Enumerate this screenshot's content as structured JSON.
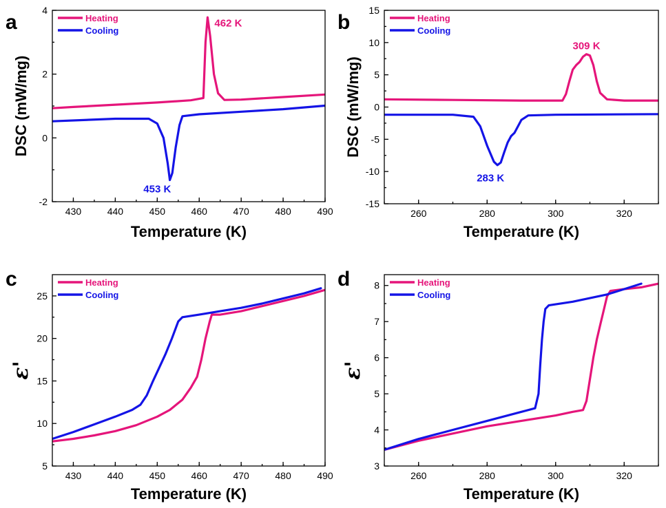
{
  "colors": {
    "heating": "#e5157a",
    "cooling": "#1414e6"
  },
  "chart_data": [
    {
      "panel": "a",
      "type": "line",
      "xlabel": "Temperature (K)",
      "ylabel": "DSC (mW/mg)",
      "xlim": [
        425,
        490
      ],
      "ylim": [
        -2,
        4
      ],
      "xticks": [
        430,
        440,
        450,
        460,
        470,
        480,
        490
      ],
      "yticks": [
        -2,
        0,
        2,
        4
      ],
      "legend_position": "top-left",
      "annotations": [
        {
          "text": "462 K",
          "x": 462,
          "y": 3.6,
          "series": "Heating"
        },
        {
          "text": "453 K",
          "x": 450,
          "y": -1.6,
          "series": "Cooling"
        }
      ],
      "series": [
        {
          "name": "Heating",
          "color_key": "heating",
          "x": [
            425,
            430,
            440,
            450,
            458,
            461,
            461.5,
            462,
            462.6,
            463.5,
            464.5,
            466,
            470,
            480,
            490
          ],
          "y": [
            0.93,
            0.97,
            1.04,
            1.11,
            1.18,
            1.25,
            3.0,
            3.78,
            3.2,
            2.0,
            1.4,
            1.19,
            1.2,
            1.28,
            1.36
          ]
        },
        {
          "name": "Cooling",
          "color_key": "cooling",
          "x": [
            425,
            440,
            448,
            450,
            451.5,
            452.5,
            453,
            453.6,
            454.4,
            455.3,
            456,
            460,
            470,
            480,
            490
          ],
          "y": [
            0.52,
            0.6,
            0.6,
            0.45,
            0.0,
            -0.8,
            -1.32,
            -1.1,
            -0.3,
            0.4,
            0.68,
            0.74,
            0.82,
            0.9,
            1.01
          ]
        }
      ]
    },
    {
      "panel": "b",
      "type": "line",
      "xlabel": "Temperature (K)",
      "ylabel": "DSC (mW/mg)",
      "xlim": [
        250,
        330
      ],
      "ylim": [
        -15,
        15
      ],
      "xticks": [
        260,
        280,
        300,
        320
      ],
      "yticks": [
        -15,
        -10,
        -5,
        0,
        5,
        10,
        15
      ],
      "legend_position": "top-left",
      "annotations": [
        {
          "text": "309 K",
          "x": 309,
          "y": 9.5,
          "series": "Heating"
        },
        {
          "text": "283 K",
          "x": 281,
          "y": -11,
          "series": "Cooling"
        }
      ],
      "series": [
        {
          "name": "Heating",
          "color_key": "heating",
          "x": [
            250,
            270,
            290,
            302,
            303,
            304,
            305,
            306,
            307,
            308,
            309,
            310,
            311,
            312,
            313,
            315,
            320,
            330
          ],
          "y": [
            1.2,
            1.1,
            1.0,
            1.0,
            2.0,
            4.0,
            5.8,
            6.5,
            7.0,
            7.8,
            8.2,
            8.0,
            6.5,
            4.0,
            2.2,
            1.2,
            1.0,
            1.0
          ]
        },
        {
          "name": "Cooling",
          "color_key": "cooling",
          "x": [
            250,
            270,
            276,
            278,
            280,
            282,
            283,
            284,
            285,
            286,
            287,
            288,
            289,
            290,
            292,
            300,
            330
          ],
          "y": [
            -1.2,
            -1.2,
            -1.5,
            -3.0,
            -6.0,
            -8.5,
            -9.0,
            -8.6,
            -7.0,
            -5.5,
            -4.5,
            -4.0,
            -3.0,
            -2.0,
            -1.3,
            -1.2,
            -1.1
          ]
        }
      ]
    },
    {
      "panel": "c",
      "type": "line",
      "xlabel": "Temperature (K)",
      "ylabel": "ε'",
      "xlim": [
        425,
        490
      ],
      "ylim": [
        5,
        27.5
      ],
      "xticks": [
        430,
        440,
        450,
        460,
        470,
        480,
        490
      ],
      "yticks": [
        5,
        10,
        15,
        20,
        25
      ],
      "legend_position": "top-left",
      "series": [
        {
          "name": "Heating",
          "color_key": "heating",
          "x": [
            425,
            430,
            435,
            440,
            445,
            450,
            453,
            456,
            458,
            459.5,
            460.5,
            461.5,
            462.5,
            463,
            465,
            470,
            475,
            480,
            485,
            490
          ],
          "y": [
            7.9,
            8.2,
            8.6,
            9.1,
            9.8,
            10.8,
            11.6,
            12.8,
            14.2,
            15.5,
            17.5,
            20.0,
            22.0,
            22.8,
            22.8,
            23.2,
            23.8,
            24.4,
            25.0,
            25.7
          ]
        },
        {
          "name": "Cooling",
          "color_key": "cooling",
          "x": [
            425,
            430,
            435,
            440,
            444,
            446,
            447.5,
            449,
            450.5,
            452,
            453.5,
            455,
            456,
            460,
            465,
            470,
            475,
            480,
            485,
            489
          ],
          "y": [
            8.2,
            9.0,
            9.9,
            10.8,
            11.6,
            12.2,
            13.3,
            15.0,
            16.6,
            18.2,
            20.0,
            22.0,
            22.5,
            22.8,
            23.2,
            23.6,
            24.1,
            24.7,
            25.3,
            25.9
          ]
        }
      ]
    },
    {
      "panel": "d",
      "type": "line",
      "xlabel": "Temperature (K)",
      "ylabel": "ε'",
      "xlim": [
        250,
        330
      ],
      "ylim": [
        3,
        8.3
      ],
      "xticks": [
        260,
        280,
        300,
        320
      ],
      "yticks": [
        3,
        4,
        5,
        6,
        7,
        8
      ],
      "legend_position": "top-left",
      "series": [
        {
          "name": "Heating",
          "color_key": "heating",
          "x": [
            250,
            260,
            270,
            280,
            290,
            300,
            305,
            308,
            309,
            310,
            311,
            312,
            313,
            314,
            315,
            316,
            320,
            325,
            330
          ],
          "y": [
            3.45,
            3.7,
            3.9,
            4.1,
            4.25,
            4.4,
            4.5,
            4.55,
            4.8,
            5.4,
            6.0,
            6.5,
            6.9,
            7.3,
            7.7,
            7.85,
            7.9,
            7.95,
            8.05
          ]
        },
        {
          "name": "Cooling",
          "color_key": "cooling",
          "x": [
            250,
            260,
            270,
            280,
            290,
            294,
            295,
            295.5,
            296,
            296.5,
            297,
            298,
            305,
            310,
            315,
            320,
            325
          ],
          "y": [
            3.45,
            3.75,
            4.0,
            4.25,
            4.5,
            4.6,
            5.0,
            5.8,
            6.5,
            7.0,
            7.35,
            7.45,
            7.55,
            7.65,
            7.75,
            7.9,
            8.05
          ]
        }
      ]
    }
  ]
}
